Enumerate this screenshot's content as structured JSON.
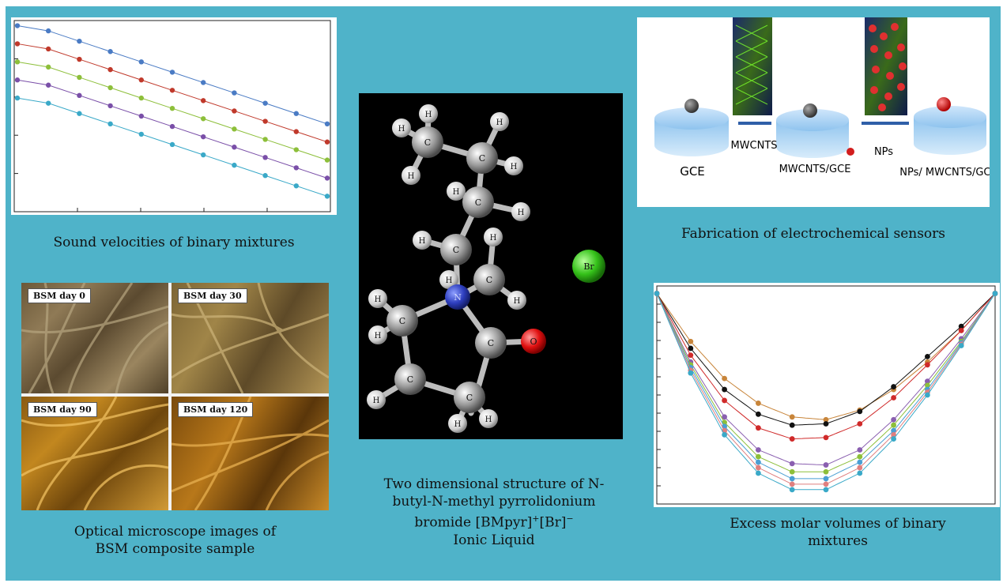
{
  "captions": {
    "sound": "Sound velocities of binary mixtures",
    "fabrication": "Fabrication of electrochemical sensors",
    "optical_line1": "Optical microscope images of",
    "optical_line2": "BSM composite sample",
    "structure_line1": "Two dimensional structure of N-",
    "structure_line2": "butyl-N-methyl pyrrolidonium",
    "structure_line3_pre": "bromide [BMpyr]",
    "structure_line3_sup1": "+",
    "structure_line3_mid": "[Br]",
    "structure_line3_sup2": "−",
    "structure_line4": "Ionic Liquid",
    "excess_line1": "Excess molar volumes of binary",
    "excess_line2": "mixtures"
  },
  "fabrication": {
    "labels": [
      "GCE",
      "MWCNTS",
      "MWCNTS/GCE",
      "NPs",
      "NPs/ MWCNTS/GCE"
    ]
  },
  "microscope": {
    "panels": [
      "BSM day 0",
      "BSM day 30",
      "BSM day 90",
      "BSM day 120"
    ]
  },
  "molecule": {
    "atoms": {
      "carbon": "C",
      "hydrogen": "H",
      "nitrogen": "N",
      "oxygen": "O",
      "bromine": "Br"
    }
  },
  "colors": {
    "background": "#4fb3c9",
    "series": [
      "#4a7bc4",
      "#c0392b",
      "#8dbf3a",
      "#7a4fa8",
      "#3aa9c8"
    ],
    "excess_series": [
      "#c8853a",
      "#111111",
      "#d02a2a",
      "#8a5fb0",
      "#8dbf3a",
      "#4a9fd4",
      "#e07f7f",
      "#3aa9c8"
    ]
  },
  "chart_data": [
    {
      "type": "scatter",
      "title": "",
      "xlabel": "",
      "ylabel": "",
      "note": "Sound velocities panel; axes unlabeled, five linearly decreasing series",
      "x": [
        0,
        1,
        2,
        3,
        4,
        5,
        6,
        7,
        8,
        9,
        10
      ],
      "series": [
        {
          "values": [
            100,
            98,
            94,
            90,
            86,
            82,
            78,
            74,
            70,
            66,
            62
          ]
        },
        {
          "values": [
            93,
            91,
            87,
            83,
            79,
            75,
            71,
            67,
            63,
            59,
            55
          ]
        },
        {
          "values": [
            86,
            84,
            80,
            76,
            72,
            68,
            64,
            60,
            56,
            52,
            48
          ]
        },
        {
          "values": [
            79,
            77,
            73,
            69,
            65,
            61,
            57,
            53,
            49,
            45,
            41
          ]
        },
        {
          "values": [
            72,
            70,
            66,
            62,
            58,
            54,
            50,
            46,
            42,
            38,
            34
          ]
        }
      ]
    },
    {
      "type": "scatter",
      "title": "",
      "xlabel": "",
      "ylabel": "",
      "note": "Excess molar volumes panel; axes unlabeled, U-shaped curves",
      "x": [
        0,
        0.1,
        0.2,
        0.3,
        0.4,
        0.5,
        0.6,
        0.7,
        0.8,
        0.9,
        1.0
      ],
      "series": [
        {
          "values": [
            0,
            -0.35,
            -0.62,
            -0.8,
            -0.9,
            -0.92,
            -0.85,
            -0.7,
            -0.5,
            -0.27,
            0
          ]
        },
        {
          "values": [
            0,
            -0.4,
            -0.7,
            -0.88,
            -0.96,
            -0.95,
            -0.86,
            -0.68,
            -0.46,
            -0.24,
            0
          ]
        },
        {
          "values": [
            0,
            -0.45,
            -0.78,
            -0.98,
            -1.06,
            -1.05,
            -0.95,
            -0.76,
            -0.52,
            -0.27,
            0
          ]
        },
        {
          "values": [
            0,
            -0.5,
            -0.9,
            -1.14,
            -1.24,
            -1.25,
            -1.14,
            -0.92,
            -0.64,
            -0.33,
            0
          ]
        },
        {
          "values": [
            0,
            -0.52,
            -0.94,
            -1.19,
            -1.3,
            -1.3,
            -1.19,
            -0.96,
            -0.67,
            -0.35,
            0
          ]
        },
        {
          "values": [
            0,
            -0.54,
            -0.97,
            -1.23,
            -1.35,
            -1.35,
            -1.23,
            -1.0,
            -0.7,
            -0.36,
            0
          ]
        },
        {
          "values": [
            0,
            -0.56,
            -1.0,
            -1.27,
            -1.39,
            -1.39,
            -1.27,
            -1.03,
            -0.72,
            -0.37,
            0
          ]
        },
        {
          "values": [
            0,
            -0.58,
            -1.03,
            -1.31,
            -1.43,
            -1.43,
            -1.31,
            -1.06,
            -0.74,
            -0.38,
            0
          ]
        }
      ]
    }
  ]
}
